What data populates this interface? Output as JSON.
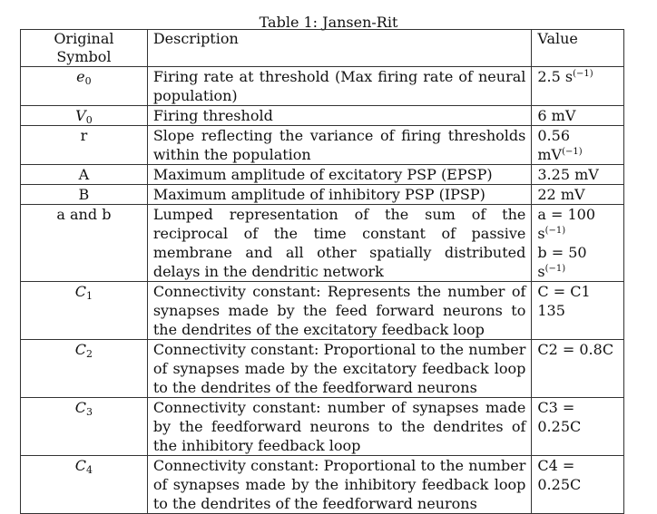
{
  "caption": "Table 1: Jansen-Rit",
  "headers": [
    "Original Symbol",
    "Description",
    "Value"
  ],
  "rows": [
    {
      "symbol": "e",
      "symbol_sub": "0",
      "description": "Firing rate at threshold (Max firing rate of neural population)",
      "value": "2.5 s",
      "value_sup": "(−1)"
    },
    {
      "symbol": "V",
      "symbol_sub": "0",
      "description": "Firing threshold",
      "value": "6 mV",
      "value_sup": ""
    },
    {
      "symbol": "r",
      "symbol_sub": "",
      "description": "Slope reflecting the variance of firing thresholds within the population",
      "value": "0.56 mV",
      "value_sup": "(−1)"
    },
    {
      "symbol": "A",
      "symbol_sub": "",
      "description": "Maximum amplitude of excitatory PSP (EPSP)",
      "value": "3.25 mV",
      "value_sup": ""
    },
    {
      "symbol": "B",
      "symbol_sub": "",
      "description": "Maximum amplitude of inhibitory PSP (IPSP)",
      "value": "22 mV",
      "value_sup": ""
    },
    {
      "symbol": "a and b",
      "symbol_sub": "",
      "description": "Lumped representation of the sum of the reciprocal of the time constant of passive membrane and all other spatially distributed delays in the dendritic network",
      "value": "a = 100 s",
      "value_sup": "(−1)",
      "value2": "b = 50 s",
      "value2_sup": "(−1)"
    },
    {
      "symbol": "C",
      "symbol_sub": "1",
      "description": "Connectivity constant: Represents the number of synapses made by the feed forward neurons to the dendrites of the excitatory feedback loop",
      "value": "C = C1 135",
      "value_sup": ""
    },
    {
      "symbol": "C",
      "symbol_sub": "2",
      "description": "Connectivity constant: Proportional to the number of synapses made by the excitatory feedback loop to the dendrites of the feedforward neurons",
      "value": "C2 = 0.8C",
      "value_sup": ""
    },
    {
      "symbol": "C",
      "symbol_sub": "3",
      "description": "Connectivity constant: number of synapses made by the feedforward neurons to the dendrites of the inhibitory feedback loop",
      "value": "C3 = 0.25C",
      "value_sup": ""
    },
    {
      "symbol": "C",
      "symbol_sub": "4",
      "description": "Connectivity constant: Proportional to the number of synapses made by the inhibitory feedback loop to the dendrites of the feedforward neurons",
      "value": "C4 = 0.25C",
      "value_sup": ""
    }
  ]
}
